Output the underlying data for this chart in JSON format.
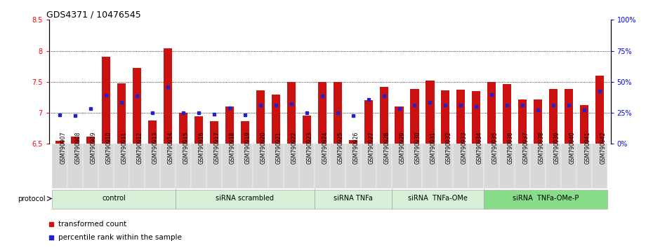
{
  "title": "GDS4371 / 10476545",
  "samples": [
    "GSM790907",
    "GSM790908",
    "GSM790909",
    "GSM790910",
    "GSM790911",
    "GSM790912",
    "GSM790913",
    "GSM790914",
    "GSM790915",
    "GSM790916",
    "GSM790917",
    "GSM790918",
    "GSM790919",
    "GSM790920",
    "GSM790921",
    "GSM790922",
    "GSM790923",
    "GSM790924",
    "GSM790925",
    "GSM790926",
    "GSM790927",
    "GSM790928",
    "GSM790929",
    "GSM790930",
    "GSM790931",
    "GSM790932",
    "GSM790933",
    "GSM790934",
    "GSM790935",
    "GSM790936",
    "GSM790937",
    "GSM790938",
    "GSM790939",
    "GSM790940",
    "GSM790941",
    "GSM790942"
  ],
  "bar_values": [
    6.55,
    6.62,
    6.62,
    7.9,
    7.47,
    7.72,
    6.88,
    8.04,
    7.0,
    6.94,
    6.86,
    7.1,
    6.86,
    7.36,
    7.3,
    7.5,
    6.96,
    7.5,
    7.5,
    6.56,
    7.2,
    7.42,
    7.1,
    7.38,
    7.52,
    7.36,
    7.37,
    7.35,
    7.5,
    7.46,
    7.22,
    7.22,
    7.38,
    7.38,
    7.12,
    7.6
  ],
  "blue_values": [
    6.97,
    6.96,
    7.07,
    7.28,
    7.17,
    7.27,
    7.0,
    7.42,
    7.0,
    7.0,
    6.98,
    7.08,
    6.97,
    7.12,
    7.12,
    7.15,
    7.0,
    7.27,
    7.0,
    6.96,
    7.22,
    7.27,
    7.07,
    7.12,
    7.17,
    7.12,
    7.12,
    7.1,
    7.3,
    7.12,
    7.12,
    7.05,
    7.12,
    7.12,
    7.05,
    7.35
  ],
  "groups": [
    {
      "label": "control",
      "start": 0,
      "end": 8,
      "color": "#d8f0d8"
    },
    {
      "label": "siRNA scrambled",
      "start": 8,
      "end": 17,
      "color": "#d8f0d8"
    },
    {
      "label": "siRNA TNFa",
      "start": 17,
      "end": 22,
      "color": "#d8f0d8"
    },
    {
      "label": "siRNA  TNFa-OMe",
      "start": 22,
      "end": 28,
      "color": "#d8f0d8"
    },
    {
      "label": "siRNA  TNFa-OMe-P",
      "start": 28,
      "end": 36,
      "color": "#88dd88"
    }
  ],
  "ylim": [
    6.5,
    8.5
  ],
  "yticks": [
    6.5,
    7.0,
    7.5,
    8.0,
    8.5
  ],
  "ytick_labels_left": [
    "6.5",
    "7",
    "7.5",
    "8",
    "8.5"
  ],
  "ytick_labels_right": [
    "0%",
    "25%",
    "50%",
    "75%",
    "100%"
  ],
  "bar_color": "#cc1111",
  "blue_color": "#2222cc",
  "bar_bottom": 6.5,
  "grid_lines": [
    7.0,
    7.5,
    8.0
  ],
  "tick_fontsize": 7,
  "title_fontsize": 9,
  "legend_label_bar": "transformed count",
  "legend_label_blue": "percentile rank within the sample"
}
